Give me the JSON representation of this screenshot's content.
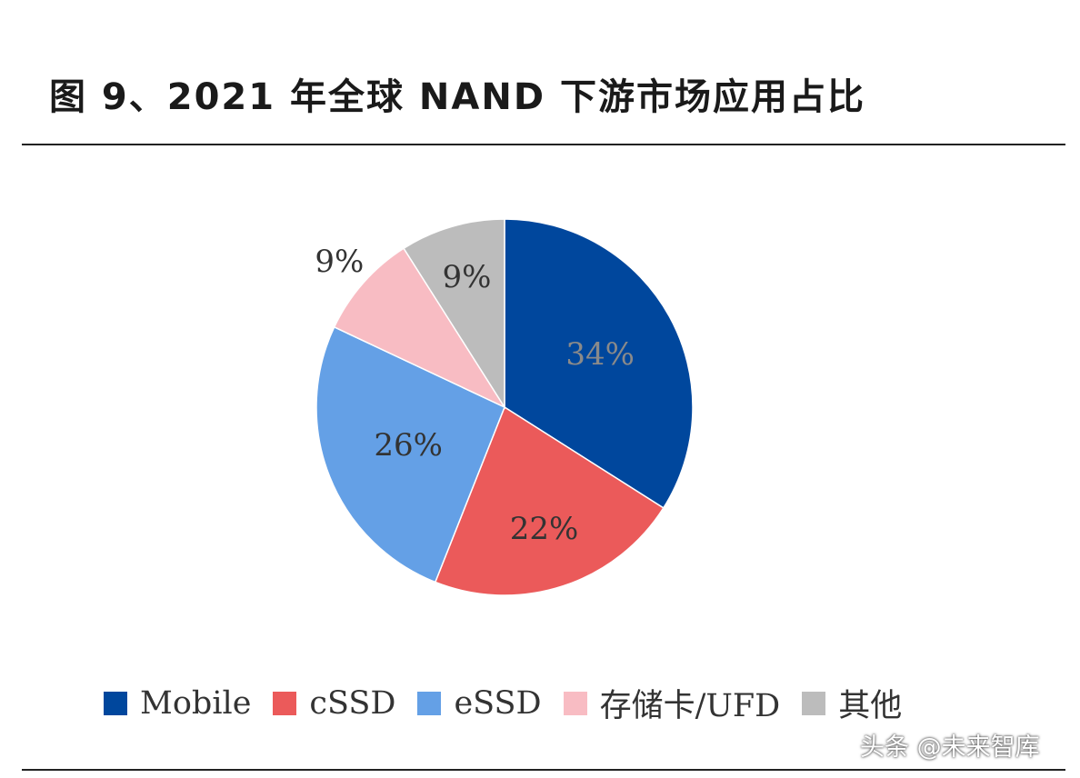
{
  "title": "图 9、2021 年全球 NAND 下游市场应用占比",
  "watermark": "头条 @未来智库",
  "chart_data": {
    "type": "pie",
    "title": "图 9、2021 年全球 NAND 下游市场应用占比",
    "legend_position": "bottom",
    "start_angle_deg": 0,
    "direction": "clockwise",
    "slices": [
      {
        "name": "Mobile",
        "value": 34,
        "label": "34%",
        "color": "#00479d",
        "label_color": "#8a8a8a"
      },
      {
        "name": "cSSD",
        "value": 22,
        "label": "22%",
        "color": "#eb5a5a",
        "label_color": "#333333"
      },
      {
        "name": "eSSD",
        "value": 26,
        "label": "26%",
        "color": "#64a0e6",
        "label_color": "#333333"
      },
      {
        "name": "存储卡/UFD",
        "value": 9,
        "label": "9%",
        "color": "#f8bcc3",
        "label_color": "#333333"
      },
      {
        "name": "其他",
        "value": 9,
        "label": "9%",
        "color": "#bcbcbc",
        "label_color": "#333333"
      }
    ]
  }
}
